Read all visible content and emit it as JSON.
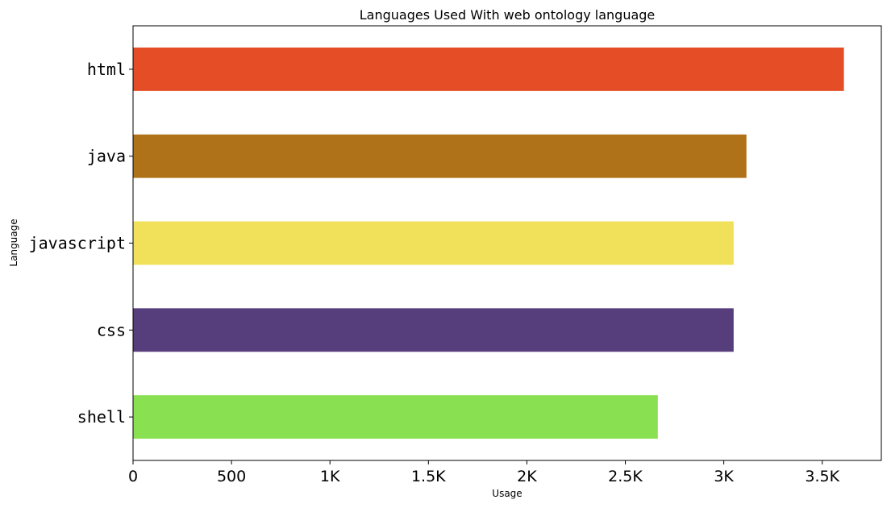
{
  "chart_data": {
    "type": "bar",
    "orientation": "horizontal",
    "title": "Languages Used With web ontology language",
    "xlabel": "Usage",
    "ylabel": "Language",
    "categories": [
      "html",
      "java",
      "javascript",
      "css",
      "shell"
    ],
    "values": [
      3610,
      3115,
      3050,
      3050,
      2665
    ],
    "colors": [
      "#e44d26",
      "#b07219",
      "#f1e05a",
      "#563d7c",
      "#89e051"
    ],
    "xlim": [
      0,
      3800
    ],
    "xticks": [
      0,
      500,
      1000,
      1500,
      2000,
      2500,
      3000,
      3500
    ],
    "xtick_labels": [
      "0",
      "500",
      "1K",
      "1.5K",
      "2K",
      "2.5K",
      "3K",
      "3.5K"
    ],
    "grid": false,
    "legend": "none"
  }
}
